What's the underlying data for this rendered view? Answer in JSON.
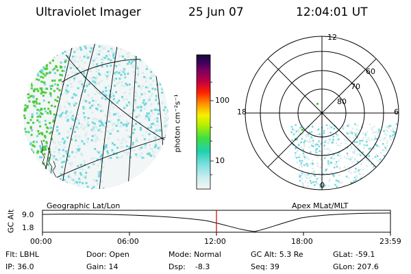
{
  "header": {
    "instrument": "Ultraviolet Imager",
    "date": "25 Jun 07",
    "time": "12:04:01 UT"
  },
  "colorbar": {
    "unit_label": "photon cm⁻²s⁻¹",
    "ticks": [
      "100",
      "10"
    ]
  },
  "left_panel": {
    "label": "Geographic Lat/Lon"
  },
  "right_panel": {
    "label": "Apex  MLat/MLT",
    "mlt_labels": [
      "12",
      "18",
      "6",
      "0"
    ],
    "mlat_labels": [
      "60",
      "70",
      "80"
    ]
  },
  "timeline": {
    "ylabel": "GC Alt",
    "ytick_top": "9.0",
    "ytick_bottom": "1.8",
    "xticks": [
      "00:00",
      "06:00",
      "12:00",
      "18:00",
      "23:59"
    ]
  },
  "info": {
    "flt": "Flt: LBHL",
    "ip": "IP: 36.0",
    "door": "Door: Open",
    "gain": "Gain: 14",
    "mode": "Mode: Normal",
    "dsp": "Dsp:    -8.3",
    "gc_alt": "GC Alt: 5.3 Re",
    "seq": "Seq: 39",
    "glat": "GLat: -59.1",
    "glon": "GLon: 207.6"
  },
  "colors": {
    "speckle_light": "#d8ecee",
    "speckle_cyan": "#6fd8dc",
    "speckle_green": "#4ccc3c",
    "marker": "#cc0000"
  }
}
